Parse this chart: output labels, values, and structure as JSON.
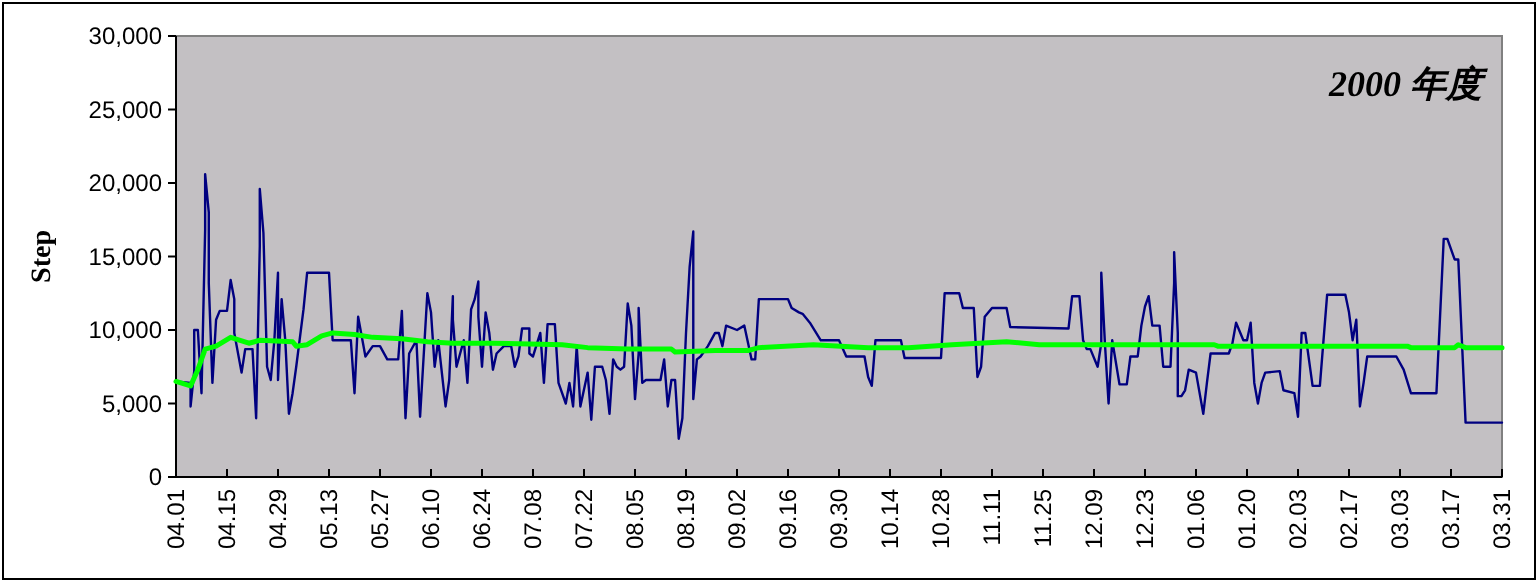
{
  "chart_data": {
    "type": "line",
    "title": "2000 年度",
    "ylabel": "Step",
    "xlim": [
      "2000-04-01",
      "2001-03-31"
    ],
    "xticks": [
      {
        "value": "2000-04-01",
        "label": "04.01"
      },
      {
        "value": "2000-04-15",
        "label": "04.15"
      },
      {
        "value": "2000-04-29",
        "label": "04.29"
      },
      {
        "value": "2000-05-13",
        "label": "05.13"
      },
      {
        "value": "2000-05-27",
        "label": "05.27"
      },
      {
        "value": "2000-06-10",
        "label": "06.10"
      },
      {
        "value": "2000-06-24",
        "label": "06.24"
      },
      {
        "value": "2000-07-08",
        "label": "07.08"
      },
      {
        "value": "2000-07-22",
        "label": "07.22"
      },
      {
        "value": "2000-08-05",
        "label": "08.05"
      },
      {
        "value": "2000-08-19",
        "label": "08.19"
      },
      {
        "value": "2000-09-02",
        "label": "09.02"
      },
      {
        "value": "2000-09-16",
        "label": "09.16"
      },
      {
        "value": "2000-09-30",
        "label": "09.30"
      },
      {
        "value": "2000-10-14",
        "label": "10.14"
      },
      {
        "value": "2000-10-28",
        "label": "10.28"
      },
      {
        "value": "2000-11-11",
        "label": "11.11"
      },
      {
        "value": "2000-11-25",
        "label": "11.25"
      },
      {
        "value": "2000-12-09",
        "label": "12.09"
      },
      {
        "value": "2000-12-23",
        "label": "12.23"
      },
      {
        "value": "2001-01-06",
        "label": "01.06"
      },
      {
        "value": "2001-01-20",
        "label": "01.20"
      },
      {
        "value": "2001-02-03",
        "label": "02.03"
      },
      {
        "value": "2001-02-17",
        "label": "02.17"
      },
      {
        "value": "2001-03-03",
        "label": "03.03"
      },
      {
        "value": "2001-03-17",
        "label": "03.17"
      },
      {
        "value": "2001-03-31",
        "label": "03.31"
      }
    ],
    "ylim": [
      0,
      30000
    ],
    "yticks": [
      0,
      {
        "value": 5000,
        "label": "5,000"
      },
      {
        "value": 10000,
        "label": "10,000"
      },
      {
        "value": 15000,
        "label": "15,000"
      },
      {
        "value": 20000,
        "label": "20,000"
      },
      {
        "value": 25000,
        "label": "25,000"
      },
      {
        "value": 30000,
        "label": "30,000"
      }
    ],
    "series": [
      {
        "color": "#000080",
        "x": [
          "2000-04-01",
          "2000-04-05",
          "2000-04-05",
          "2000-04-06",
          "2000-04-06",
          "2000-04-07",
          "2000-04-08",
          "2000-04-09",
          "2000-04-09",
          "2000-04-10",
          "2000-04-10",
          "2000-04-11",
          "2000-04-12",
          "2000-04-13",
          "2000-04-15",
          "2000-04-16",
          "2000-04-17",
          "2000-04-17",
          "2000-04-19",
          "2000-04-20",
          "2000-04-22",
          "2000-04-23",
          "2000-04-24",
          "2000-04-24",
          "2000-04-25",
          "2000-04-26",
          "2000-04-27",
          "2000-04-28",
          "2000-04-29",
          "2000-04-29",
          "2000-04-30",
          "2000-05-01",
          "2000-05-02",
          "2000-05-03",
          "2000-05-04",
          "2000-05-06",
          "2000-05-07",
          "2000-05-13",
          "2000-05-14",
          "2000-05-19",
          "2000-05-20",
          "2000-05-21",
          "2000-05-23",
          "2000-05-25",
          "2000-05-27",
          "2000-05-29",
          "2000-06-01",
          "2000-06-02",
          "2000-06-03",
          "2000-06-04",
          "2000-06-06",
          "2000-06-07",
          "2000-06-09",
          "2000-06-10",
          "2000-06-11",
          "2000-06-12",
          "2000-06-14",
          "2000-06-15",
          "2000-06-16",
          "2000-06-16",
          "2000-06-17",
          "2000-06-19",
          "2000-06-20",
          "2000-06-21",
          "2000-06-22",
          "2000-06-23",
          "2000-06-23",
          "2000-06-24",
          "2000-06-25",
          "2000-06-26",
          "2000-06-27",
          "2000-06-28",
          "2000-06-30",
          "2000-07-02",
          "2000-07-03",
          "2000-07-04",
          "2000-07-05",
          "2000-07-07",
          "2000-07-07",
          "2000-07-08",
          "2000-07-10",
          "2000-07-11",
          "2000-07-12",
          "2000-07-14",
          "2000-07-15",
          "2000-07-17",
          "2000-07-18",
          "2000-07-19",
          "2000-07-20",
          "2000-07-21",
          "2000-07-23",
          "2000-07-24",
          "2000-07-25",
          "2000-07-27",
          "2000-07-28",
          "2000-07-29",
          "2000-07-30",
          "2000-07-31",
          "2000-08-01",
          "2000-08-02",
          "2000-08-03",
          "2000-08-04",
          "2000-08-05",
          "2000-08-06",
          "2000-08-06",
          "2000-08-07",
          "2000-08-08",
          "2000-08-12",
          "2000-08-13",
          "2000-08-14",
          "2000-08-15",
          "2000-08-16",
          "2000-08-17",
          "2000-08-18",
          "2000-08-19",
          "2000-08-20",
          "2000-08-21",
          "2000-08-21",
          "2000-08-22",
          "2000-08-23",
          "2000-08-25",
          "2000-08-27",
          "2000-08-28",
          "2000-08-29",
          "2000-08-30",
          "2000-09-02",
          "2000-09-04",
          "2000-09-04",
          "2000-09-06",
          "2000-09-07",
          "2000-09-08",
          "2000-09-16",
          "2000-09-17",
          "2000-09-19",
          "2000-09-20",
          "2000-09-22",
          "2000-09-25",
          "2000-09-30",
          "2000-10-02",
          "2000-10-07",
          "2000-10-08",
          "2000-10-09",
          "2000-10-10",
          "2000-10-17",
          "2000-10-18",
          "2000-10-28",
          "2000-10-29",
          "2000-11-02",
          "2000-11-03",
          "2000-11-06",
          "2000-11-07",
          "2000-11-08",
          "2000-11-09",
          "2000-11-11",
          "2000-11-15",
          "2000-11-16",
          "2000-12-02",
          "2000-12-03",
          "2000-12-05",
          "2000-12-06",
          "2000-12-07",
          "2000-12-08",
          "2000-12-10",
          "2000-12-11",
          "2000-12-11",
          "2000-12-12",
          "2000-12-13",
          "2000-12-14",
          "2000-12-14",
          "2000-12-16",
          "2000-12-18",
          "2000-12-19",
          "2000-12-21",
          "2000-12-22",
          "2000-12-23",
          "2000-12-24",
          "2000-12-25",
          "2000-12-27",
          "2000-12-28",
          "2000-12-30",
          "2000-12-31",
          "2000-12-31",
          "2001-01-01",
          "2001-01-01",
          "2001-01-02",
          "2001-01-03",
          "2001-01-04",
          "2001-01-06",
          "2001-01-08",
          "2001-01-09",
          "2001-01-10",
          "2001-01-15",
          "2001-01-16",
          "2001-01-17",
          "2001-01-18",
          "2001-01-19",
          "2001-01-20",
          "2001-01-21",
          "2001-01-22",
          "2001-01-23",
          "2001-01-24",
          "2001-01-25",
          "2001-01-29",
          "2001-01-30",
          "2001-02-02",
          "2001-02-03",
          "2001-02-04",
          "2001-02-05",
          "2001-02-07",
          "2001-02-09",
          "2001-02-11",
          "2001-02-16",
          "2001-02-17",
          "2001-02-18",
          "2001-02-19",
          "2001-02-20",
          "2001-02-21",
          "2001-02-22",
          "2001-03-02",
          "2001-03-04",
          "2001-03-06",
          "2001-03-13",
          "2001-03-15",
          "2001-03-16",
          "2001-03-18",
          "2001-03-19",
          "2001-03-21",
          "2001-03-31"
        ],
        "values": [
          6500,
          6400,
          4800,
          7200,
          10000,
          10000,
          5700,
          16800,
          20600,
          18000,
          13200,
          6400,
          10700,
          11300,
          11300,
          13400,
          12100,
          9800,
          7100,
          8700,
          8700,
          4000,
          15700,
          19600,
          16600,
          7500,
          6600,
          9300,
          13900,
          6600,
          12100,
          9300,
          4300,
          5700,
          7500,
          11400,
          13900,
          13900,
          9300,
          9300,
          5700,
          10900,
          8200,
          8900,
          8900,
          8000,
          8000,
          11300,
          4000,
          8400,
          9300,
          4100,
          12500,
          11200,
          7500,
          9300,
          4800,
          6600,
          12300,
          10700,
          7500,
          9300,
          6400,
          11400,
          12100,
          13300,
          10900,
          7500,
          11200,
          9800,
          7300,
          8400,
          8900,
          8900,
          7500,
          8200,
          10100,
          10100,
          8400,
          8200,
          9800,
          6400,
          10400,
          10400,
          6400,
          5000,
          6400,
          4800,
          8900,
          4800,
          7100,
          3900,
          7500,
          7500,
          6600,
          4300,
          8000,
          7500,
          7300,
          7500,
          11800,
          10300,
          5300,
          8400,
          11500,
          6400,
          6600,
          6600,
          8000,
          4800,
          6600,
          6600,
          2600,
          4000,
          9800,
          14300,
          16700,
          5300,
          8000,
          8200,
          8900,
          9800,
          9800,
          8900,
          10300,
          10000,
          10300,
          10300,
          8000,
          8000,
          12100,
          12100,
          11500,
          11200,
          11100,
          10500,
          9300,
          9300,
          8200,
          8200,
          6800,
          6200,
          9300,
          9300,
          8100,
          8100,
          12500,
          12500,
          11500,
          11500,
          6800,
          7500,
          10900,
          11500,
          11500,
          10200,
          10100,
          12300,
          12300,
          9300,
          8700,
          8700,
          7500,
          9100,
          13900,
          9100,
          5000,
          9300,
          9300,
          6300,
          6300,
          8200,
          8200,
          10300,
          11600,
          12300,
          10300,
          10300,
          7500,
          7500,
          13200,
          15300,
          9800,
          5500,
          5500,
          5900,
          7300,
          7100,
          4300,
          6400,
          8400,
          8400,
          9100,
          10500,
          9900,
          9300,
          9300,
          10500,
          6400,
          5000,
          6400,
          7100,
          7200,
          5900,
          5700,
          4100,
          9800,
          9800,
          6200,
          6200,
          12400,
          12400,
          11200,
          9300,
          10700,
          4800,
          6400,
          8200,
          8200,
          7300,
          5700,
          5700,
          16200,
          16200,
          14800,
          14800,
          3700,
          3700
        ]
      },
      {
        "color": "#00ff00",
        "x": [
          "2000-04-01",
          "2000-04-05",
          "2000-04-07",
          "2000-04-09",
          "2000-04-12",
          "2000-04-16",
          "2000-04-21",
          "2000-04-24",
          "2000-05-03",
          "2000-05-04",
          "2000-05-07",
          "2000-05-11",
          "2000-05-14",
          "2000-05-20",
          "2000-05-25",
          "2000-06-02",
          "2000-06-09",
          "2000-06-16",
          "2000-06-27",
          "2000-07-16",
          "2000-07-23",
          "2000-08-03",
          "2000-08-15",
          "2000-08-16",
          "2000-08-27",
          "2000-09-05",
          "2000-09-08",
          "2000-09-23",
          "2000-10-08",
          "2000-10-19",
          "2000-10-31",
          "2000-11-15",
          "2000-11-24",
          "2001-01-11",
          "2001-01-12",
          "2001-03-05",
          "2001-03-06",
          "2001-03-18",
          "2001-03-19",
          "2001-03-21",
          "2001-03-31"
        ],
        "values": [
          6500,
          6200,
          7300,
          8700,
          8900,
          9500,
          9100,
          9300,
          9200,
          8900,
          9000,
          9600,
          9800,
          9700,
          9500,
          9400,
          9200,
          9100,
          9100,
          9000,
          8800,
          8700,
          8700,
          8500,
          8600,
          8600,
          8800,
          9000,
          8800,
          8800,
          9000,
          9200,
          9000,
          9000,
          8900,
          8900,
          8800,
          8800,
          9000,
          8800,
          8800
        ]
      }
    ]
  }
}
